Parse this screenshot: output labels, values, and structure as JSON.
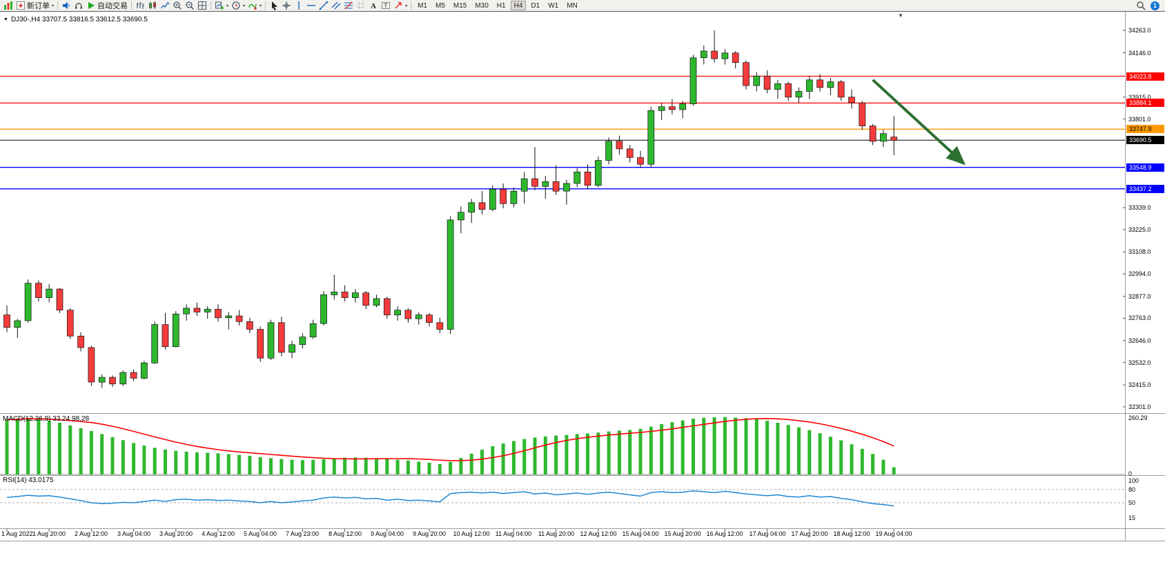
{
  "icons": {
    "collapse_triangle": "▼",
    "shift_marker": "▼"
  },
  "toolbar": {
    "buttons": [
      {
        "name": "charts-window-icon",
        "icon": "minichart"
      },
      {
        "name": "new-order-button",
        "icon": "neworder",
        "label": "新订单",
        "dropdown": true
      },
      {
        "name": "sep"
      },
      {
        "name": "community-icon",
        "icon": "speaker"
      },
      {
        "name": "support-icon",
        "icon": "headset"
      },
      {
        "name": "auto-trading-button",
        "icon": "play",
        "label": "自动交易"
      },
      {
        "name": "sep"
      },
      {
        "name": "bar-chart-type-icon",
        "icon": "bars"
      },
      {
        "name": "candlestick-chart-type-icon",
        "icon": "candles"
      },
      {
        "name": "line-chart-type-icon",
        "icon": "linechart"
      },
      {
        "name": "zoom-in-icon",
        "icon": "zoomin"
      },
      {
        "name": "zoom-out-icon",
        "icon": "zoomout"
      },
      {
        "name": "tile-windows-icon",
        "icon": "tiles"
      },
      {
        "name": "sep"
      },
      {
        "name": "new-chart-icon",
        "icon": "newchart",
        "dropdown": true
      },
      {
        "name": "profiles-icon",
        "icon": "clock",
        "dropdown": true
      },
      {
        "name": "indicators-icon",
        "icon": "indicator",
        "dropdown": true
      },
      {
        "name": "sep"
      },
      {
        "name": "cursor-tool-icon",
        "icon": "cursor"
      },
      {
        "name": "crosshair-tool-icon",
        "icon": "crosshair"
      },
      {
        "name": "vertical-line-tool-icon",
        "icon": "vline"
      },
      {
        "name": "horizontal-line-tool-icon",
        "icon": "hline"
      },
      {
        "name": "trendline-tool-icon",
        "icon": "trend"
      },
      {
        "name": "channel-tool-icon",
        "icon": "channel"
      },
      {
        "name": "fibonacci-tool-icon",
        "icon": "fibo"
      },
      {
        "name": "grid-icon",
        "icon": "grid"
      },
      {
        "name": "text-tool-icon",
        "icon": "textA"
      },
      {
        "name": "text-label-tool-icon",
        "icon": "textbox"
      },
      {
        "name": "arrows-tool-icon",
        "icon": "arrowtool",
        "dropdown": true
      },
      {
        "name": "sep"
      }
    ],
    "timeframes": [
      {
        "label": "M1"
      },
      {
        "label": "M5"
      },
      {
        "label": "M15"
      },
      {
        "label": "M30"
      },
      {
        "label": "H1"
      },
      {
        "label": "H4",
        "active": true
      },
      {
        "label": "D1"
      },
      {
        "label": "W1"
      },
      {
        "label": "MN"
      }
    ],
    "notification_badge": "1"
  },
  "chart_data": {
    "type": "candlestick",
    "symbol": "DJ30-",
    "period": "H4",
    "ohlc_line": "DJ30-,H4 33707.5 33816.5 33612.5 33690.5",
    "price_axis": {
      "min": 32272,
      "max": 34342,
      "labels": [
        "34263.0",
        "34146.0",
        "33915.0",
        "33801.0",
        "33339.0",
        "33225.0",
        "33108.0",
        "32994.0",
        "32877.0",
        "32763.0",
        "32646.0",
        "32532.0",
        "32415.0",
        "32301.0"
      ]
    },
    "hlines": [
      {
        "price": 34023.8,
        "label": "34023.8",
        "color": "#ff0000",
        "text_color": "#ffffff"
      },
      {
        "price": 33884.1,
        "label": "33884.1",
        "color": "#ff0000",
        "text_color": "#ffffff"
      },
      {
        "price": 33747.9,
        "label": "33747.9",
        "color": "#ff9900",
        "text_color": "#000000"
      },
      {
        "price": 33690.5,
        "label": "33690.5",
        "color": "#000000",
        "text_color": "#ffffff",
        "current_price": true
      },
      {
        "price": 33548.9,
        "label": "33548.9",
        "color": "#0000ff",
        "text_color": "#ffffff"
      },
      {
        "price": 33437.2,
        "label": "33437.2",
        "color": "#0000ff",
        "text_color": "#ffffff"
      }
    ],
    "candles": [
      [
        32780,
        32830,
        32690,
        32715
      ],
      [
        32715,
        32760,
        32660,
        32750
      ],
      [
        32750,
        32965,
        32740,
        32945
      ],
      [
        32945,
        32960,
        32850,
        32870
      ],
      [
        32870,
        32940,
        32845,
        32915
      ],
      [
        32915,
        32920,
        32790,
        32805
      ],
      [
        32805,
        32815,
        32655,
        32670
      ],
      [
        32670,
        32690,
        32590,
        32610
      ],
      [
        32610,
        32620,
        32410,
        32430
      ],
      [
        32430,
        32470,
        32400,
        32455
      ],
      [
        32455,
        32465,
        32405,
        32420
      ],
      [
        32420,
        32490,
        32410,
        32480
      ],
      [
        32480,
        32495,
        32435,
        32450
      ],
      [
        32450,
        32540,
        32445,
        32530
      ],
      [
        32530,
        32745,
        32525,
        32730
      ],
      [
        32730,
        32790,
        32600,
        32615
      ],
      [
        32615,
        32800,
        32610,
        32785
      ],
      [
        32785,
        32835,
        32750,
        32815
      ],
      [
        32815,
        32845,
        32775,
        32795
      ],
      [
        32795,
        32825,
        32760,
        32810
      ],
      [
        32810,
        32835,
        32745,
        32765
      ],
      [
        32765,
        32795,
        32705,
        32775
      ],
      [
        32775,
        32805,
        32725,
        32745
      ],
      [
        32745,
        32765,
        32685,
        32705
      ],
      [
        32705,
        32720,
        32535,
        32555
      ],
      [
        32555,
        32755,
        32545,
        32740
      ],
      [
        32740,
        32770,
        32565,
        32585
      ],
      [
        32585,
        32645,
        32555,
        32625
      ],
      [
        32625,
        32685,
        32605,
        32665
      ],
      [
        32665,
        32755,
        32655,
        32735
      ],
      [
        32735,
        32905,
        32725,
        32885
      ],
      [
        32885,
        32990,
        32860,
        32900
      ],
      [
        32900,
        32935,
        32850,
        32870
      ],
      [
        32870,
        32915,
        32845,
        32895
      ],
      [
        32895,
        32905,
        32810,
        32830
      ],
      [
        32830,
        32885,
        32820,
        32865
      ],
      [
        32865,
        32875,
        32760,
        32780
      ],
      [
        32780,
        32825,
        32750,
        32805
      ],
      [
        32805,
        32815,
        32740,
        32760
      ],
      [
        32760,
        32795,
        32730,
        32780
      ],
      [
        32780,
        32790,
        32720,
        32740
      ],
      [
        32740,
        32765,
        32685,
        32705
      ],
      [
        32705,
        33295,
        32680,
        33275
      ],
      [
        33275,
        33345,
        33205,
        33315
      ],
      [
        33315,
        33385,
        33260,
        33365
      ],
      [
        33365,
        33425,
        33305,
        33330
      ],
      [
        33330,
        33455,
        33320,
        33435
      ],
      [
        33435,
        33465,
        33335,
        33360
      ],
      [
        33360,
        33445,
        33340,
        33425
      ],
      [
        33425,
        33525,
        33360,
        33490
      ],
      [
        33490,
        33655,
        33430,
        33450
      ],
      [
        33450,
        33505,
        33385,
        33475
      ],
      [
        33475,
        33560,
        33405,
        33425
      ],
      [
        33425,
        33485,
        33355,
        33465
      ],
      [
        33465,
        33545,
        33445,
        33525
      ],
      [
        33525,
        33565,
        33435,
        33455
      ],
      [
        33455,
        33605,
        33445,
        33585
      ],
      [
        33585,
        33705,
        33565,
        33685
      ],
      [
        33685,
        33715,
        33615,
        33645
      ],
      [
        33645,
        33665,
        33575,
        33600
      ],
      [
        33600,
        33635,
        33545,
        33565
      ],
      [
        33565,
        33865,
        33550,
        33845
      ],
      [
        33845,
        33885,
        33795,
        33865
      ],
      [
        33865,
        33905,
        33825,
        33850
      ],
      [
        33850,
        33895,
        33805,
        33880
      ],
      [
        33880,
        34135,
        33870,
        34120
      ],
      [
        34120,
        34185,
        34085,
        34155
      ],
      [
        34155,
        34263,
        34095,
        34115
      ],
      [
        34115,
        34165,
        34085,
        34145
      ],
      [
        34145,
        34155,
        34065,
        34095
      ],
      [
        34095,
        34105,
        33955,
        33975
      ],
      [
        33975,
        34045,
        33945,
        34025
      ],
      [
        34025,
        34055,
        33935,
        33955
      ],
      [
        33955,
        34005,
        33905,
        33985
      ],
      [
        33985,
        33995,
        33895,
        33915
      ],
      [
        33915,
        33965,
        33885,
        33945
      ],
      [
        33945,
        34025,
        33905,
        34005
      ],
      [
        34005,
        34035,
        33945,
        33965
      ],
      [
        33965,
        34015,
        33925,
        33995
      ],
      [
        33995,
        34005,
        33895,
        33915
      ],
      [
        33915,
        33955,
        33855,
        33885
      ],
      [
        33885,
        33895,
        33745,
        33765
      ],
      [
        33765,
        33775,
        33665,
        33685
      ],
      [
        33685,
        33745,
        33655,
        33725
      ],
      [
        33707.5,
        33816.5,
        33612.5,
        33690.5
      ]
    ],
    "candle_colors": {
      "up": "#2eb82e",
      "down": "#f53b3b",
      "outline": "#111111"
    },
    "trend_arrow": {
      "from_index": 82,
      "from_price": 34005,
      "to_index": 90.5,
      "to_price": 33575,
      "color": "#2d7031"
    },
    "macd": {
      "label": "MACD(12,26,9) 33.24 98.28",
      "axis_labels": [
        "260.29",
        "0"
      ],
      "axis_max": 260.29,
      "bar_color": "#2eb82e",
      "signal_color": "#ff0000",
      "values": [
        252,
        258,
        260,
        255,
        248,
        238,
        226,
        213,
        200,
        186,
        172,
        158,
        145,
        133,
        123,
        115,
        109,
        105,
        102,
        100,
        97,
        94,
        90,
        86,
        80,
        75,
        71,
        68,
        66,
        67,
        70,
        74,
        77,
        78,
        77,
        75,
        72,
        68,
        64,
        59,
        54,
        48,
        58,
        76,
        96,
        114,
        130,
        143,
        154,
        163,
        170,
        175,
        179,
        182,
        186,
        189,
        193,
        198,
        202,
        205,
        210,
        220,
        232,
        241,
        249,
        257,
        261,
        263,
        264,
        262,
        259,
        254,
        247,
        238,
        228,
        217,
        204,
        190,
        174,
        157,
        139,
        118,
        95,
        68,
        33
      ]
    },
    "rsi": {
      "label": "RSI(14) 43.0175",
      "axis_labels": [
        "100",
        "80",
        "50",
        "15"
      ],
      "levels": [
        80,
        50
      ],
      "line_color": "#1e86d2",
      "values": [
        62,
        64,
        67,
        65,
        66,
        63,
        59,
        55,
        50,
        48,
        49,
        51,
        50,
        53,
        56,
        53,
        57,
        58,
        56,
        57,
        55,
        56,
        54,
        53,
        50,
        53,
        50,
        52,
        54,
        56,
        61,
        63,
        61,
        62,
        59,
        60,
        56,
        58,
        55,
        56,
        54,
        52,
        71,
        73,
        74,
        72,
        74,
        71,
        73,
        75,
        70,
        72,
        68,
        70,
        72,
        69,
        72,
        74,
        71,
        68,
        65,
        73,
        75,
        73,
        74,
        77,
        75,
        73,
        76,
        73,
        70,
        68,
        66,
        68,
        64,
        63,
        66,
        63,
        64,
        60,
        57,
        52,
        48,
        46,
        43
      ]
    },
    "time_labels": [
      "1 Aug 2022",
      "1 Aug 20:00",
      "2 Aug 12:00",
      "3 Aug 04:00",
      "3 Aug 20:00",
      "4 Aug 12:00",
      "5 Aug 04:00",
      "7 Aug 23:00",
      "8 Aug 12:00",
      "9 Aug 04:00",
      "9 Aug 20:00",
      "10 Aug 12:00",
      "11 Aug 04:00",
      "11 Aug 20:00",
      "12 Aug 12:00",
      "15 Aug 04:00",
      "15 Aug 20:00",
      "16 Aug 12:00",
      "17 Aug 04:00",
      "17 Aug 20:00",
      "18 Aug 12:00",
      "19 Aug 04:00"
    ]
  }
}
